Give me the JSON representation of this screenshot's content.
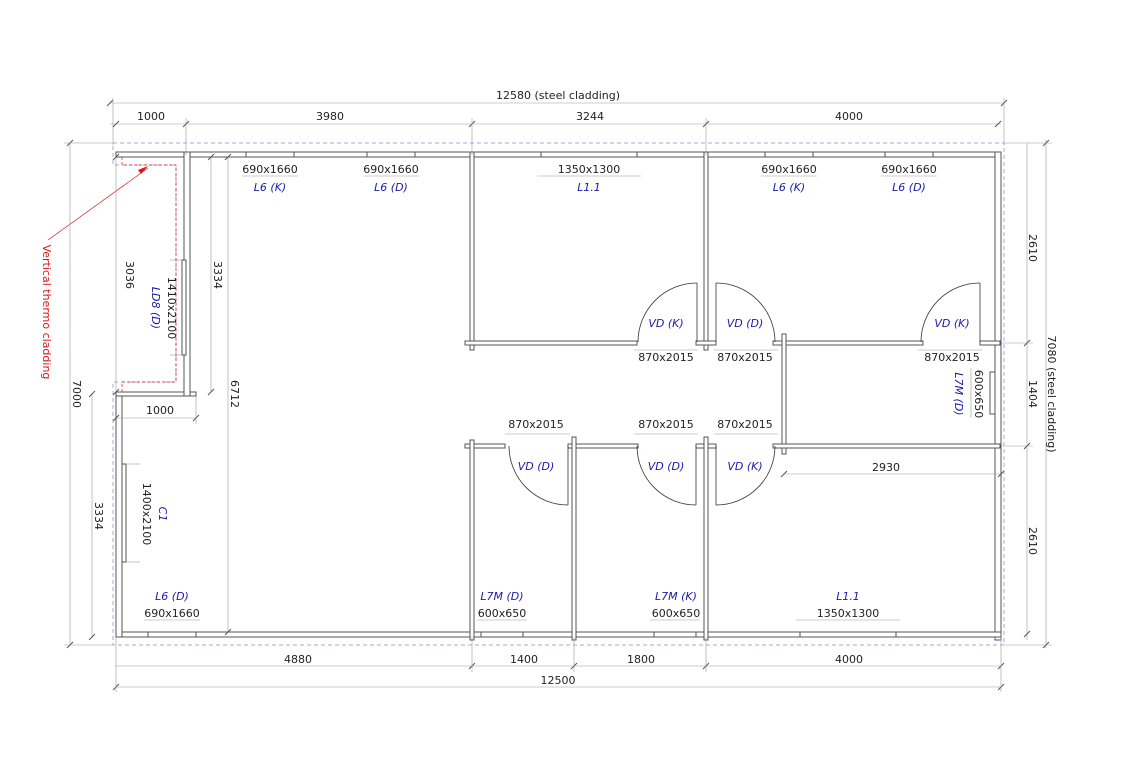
{
  "dimensions": {
    "total_top": "12580 (steel cladding)",
    "top_segments": [
      "1000",
      "3980",
      "3244",
      "4000"
    ],
    "total_bottom": "12500",
    "bottom_segments": [
      "4880",
      "1400",
      "1800",
      "4000"
    ],
    "right_total": "7080 (steel cladding)",
    "right_segments": [
      "2610",
      "1404",
      "2610"
    ],
    "left_total": "7000",
    "left_lower": "3334",
    "porch_height": "3036",
    "porch_inner": "3334",
    "inner_height": "6712",
    "porch_width": "1000",
    "corridor_width": "2930"
  },
  "annotation": {
    "thermo": "Vertical thermo cladding"
  },
  "windows": [
    {
      "size": "690x1660",
      "type": "L6 (K)"
    },
    {
      "size": "690x1660",
      "type": "L6 (D)"
    },
    {
      "size": "1350x1300",
      "type": "L1.1"
    },
    {
      "size": "690x1660",
      "type": "L6 (K)"
    },
    {
      "size": "690x1660",
      "type": "L6 (D)"
    },
    {
      "size": "600x650",
      "type": "L7M (D)"
    },
    {
      "size": "690x1660",
      "type": "L6 (D)"
    },
    {
      "size": "600x650",
      "type": "L7M (D)"
    },
    {
      "size": "600x650",
      "type": "L7M (K)"
    },
    {
      "size": "1350x1300",
      "type": "L1.1"
    }
  ],
  "doors": [
    {
      "size": "870x2015",
      "type": "VD (K)"
    },
    {
      "size": "870x2015",
      "type": "VD (D)"
    },
    {
      "size": "870x2015",
      "type": "VD (K)"
    },
    {
      "size": "870x2015",
      "type": "VD (D)"
    },
    {
      "size": "870x2015",
      "type": "VD (D)"
    },
    {
      "size": "870x2015",
      "type": "VD (K)"
    },
    {
      "size": "1410x2100",
      "type": "LD8 (D)"
    },
    {
      "size": "1400x2100",
      "type": "C1"
    }
  ]
}
